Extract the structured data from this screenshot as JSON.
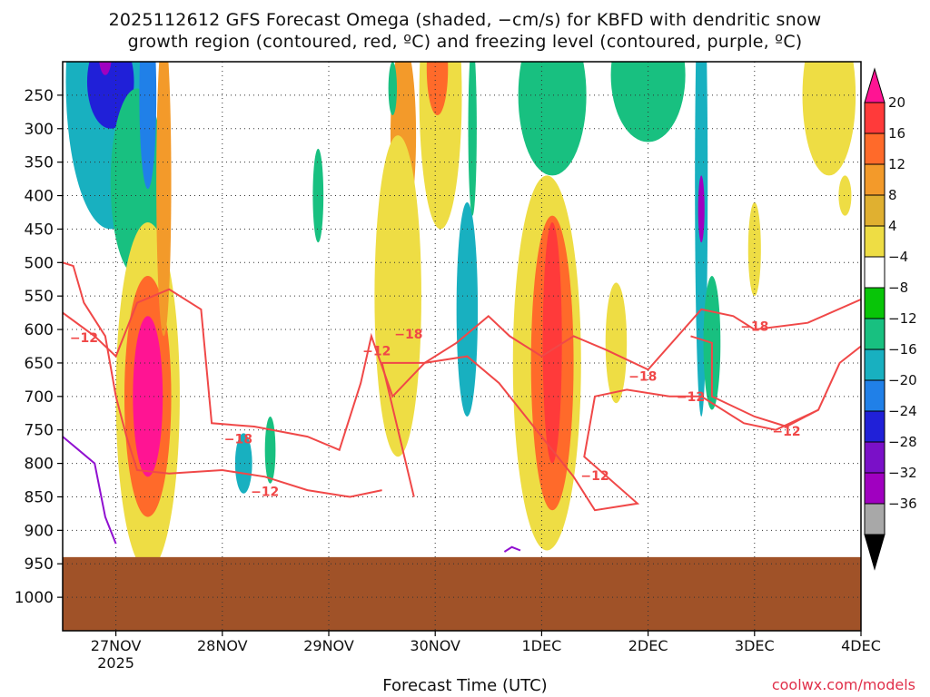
{
  "header": {
    "title_line1": "2025112612 GFS Forecast Omega (shaded, −cm/s) for KBFD with dendritic snow",
    "title_line2": "growth region (contoured, red, ºC) and freezing level (contoured, purple, ºC)"
  },
  "footer": {
    "xlabel": "Forecast Time (UTC)",
    "credit": "coolwx.com/models"
  },
  "chart_data": {
    "type": "heatmap",
    "title": "2025112612 GFS Forecast Omega (shaded, −cm/s) for KBFD with dendritic snow growth region (contoured, red, ºC) and freezing level (contoured, purple, ºC)",
    "xlabel": "Forecast Time (UTC)",
    "ylabel": "",
    "x_ticks": [
      {
        "label": "27NOV",
        "sublabel": "2025",
        "day": 1
      },
      {
        "label": "28NOV",
        "sublabel": "",
        "day": 2
      },
      {
        "label": "29NOV",
        "sublabel": "",
        "day": 3
      },
      {
        "label": "30NOV",
        "sublabel": "",
        "day": 4
      },
      {
        "label": "1DEC",
        "sublabel": "",
        "day": 5
      },
      {
        "label": "2DEC",
        "sublabel": "",
        "day": 6
      },
      {
        "label": "3DEC",
        "sublabel": "",
        "day": 7
      },
      {
        "label": "4DEC",
        "sublabel": "",
        "day": 8
      }
    ],
    "x_range_days": [
      0.5,
      8
    ],
    "y_ticks": [
      250,
      300,
      350,
      400,
      450,
      500,
      550,
      600,
      650,
      700,
      750,
      800,
      850,
      900,
      950,
      1000
    ],
    "y_range_hpa": [
      200,
      1050
    ],
    "grid": true,
    "colorbar": {
      "labels": [
        "20",
        "16",
        "12",
        "8",
        "4",
        "−4",
        "−8",
        "−12",
        "−16",
        "−20",
        "−24",
        "−28",
        "−32",
        "−36"
      ],
      "colors": [
        "#ff1493",
        "#ff3a3a",
        "#ff6a2a",
        "#f39a2a",
        "#e0b030",
        "#eedd44",
        "#ffffff",
        "#08c508",
        "#18c080",
        "#18b0c0",
        "#2080e8",
        "#2020d8",
        "#7a10c8",
        "#a000c0",
        "#a8a8a8",
        "#000000"
      ]
    },
    "ground": {
      "color": "#a05228",
      "top_hpa": 940
    },
    "omega_blobs": [
      {
        "day": 0.95,
        "hpa": 230,
        "rx_days": 0.42,
        "ry_hpa": 220,
        "value": -14
      },
      {
        "day": 0.95,
        "hpa": 230,
        "rx_days": 0.22,
        "ry_hpa": 70,
        "value": -22
      },
      {
        "day": 0.9,
        "hpa": 190,
        "rx_days": 0.06,
        "ry_hpa": 30,
        "value": -29
      },
      {
        "day": 1.2,
        "hpa": 380,
        "rx_days": 0.25,
        "ry_hpa": 140,
        "value": -10
      },
      {
        "day": 1.3,
        "hpa": 250,
        "rx_days": 0.08,
        "ry_hpa": 140,
        "value": -19
      },
      {
        "day": 1.3,
        "hpa": 700,
        "rx_days": 0.3,
        "ry_hpa": 260,
        "value": 6
      },
      {
        "day": 1.3,
        "hpa": 700,
        "rx_days": 0.22,
        "ry_hpa": 180,
        "value": 13
      },
      {
        "day": 1.3,
        "hpa": 700,
        "rx_days": 0.14,
        "ry_hpa": 120,
        "value": 21
      },
      {
        "day": 1.45,
        "hpa": 380,
        "rx_days": 0.07,
        "ry_hpa": 230,
        "value": 10
      },
      {
        "day": 2.2,
        "hpa": 800,
        "rx_days": 0.08,
        "ry_hpa": 45,
        "value": -13
      },
      {
        "day": 2.45,
        "hpa": 780,
        "rx_days": 0.05,
        "ry_hpa": 50,
        "value": -9
      },
      {
        "day": 2.9,
        "hpa": 400,
        "rx_days": 0.05,
        "ry_hpa": 70,
        "value": -9
      },
      {
        "day": 3.7,
        "hpa": 310,
        "rx_days": 0.12,
        "ry_hpa": 140,
        "value": 10
      },
      {
        "day": 3.65,
        "hpa": 550,
        "rx_days": 0.22,
        "ry_hpa": 240,
        "value": 5
      },
      {
        "day": 4.05,
        "hpa": 250,
        "rx_days": 0.2,
        "ry_hpa": 200,
        "value": 6
      },
      {
        "day": 4.02,
        "hpa": 210,
        "rx_days": 0.1,
        "ry_hpa": 70,
        "value": 14
      },
      {
        "day": 3.6,
        "hpa": 240,
        "rx_days": 0.04,
        "ry_hpa": 40,
        "value": -8
      },
      {
        "day": 4.3,
        "hpa": 570,
        "rx_days": 0.1,
        "ry_hpa": 160,
        "value": -12
      },
      {
        "day": 4.35,
        "hpa": 300,
        "rx_days": 0.04,
        "ry_hpa": 130,
        "value": -10
      },
      {
        "day": 5.05,
        "hpa": 650,
        "rx_days": 0.32,
        "ry_hpa": 280,
        "value": 6
      },
      {
        "day": 5.1,
        "hpa": 650,
        "rx_days": 0.2,
        "ry_hpa": 220,
        "value": 12
      },
      {
        "day": 5.1,
        "hpa": 620,
        "rx_days": 0.09,
        "ry_hpa": 180,
        "value": 19
      },
      {
        "day": 5.1,
        "hpa": 250,
        "rx_days": 0.32,
        "ry_hpa": 120,
        "value": -9
      },
      {
        "day": 5.7,
        "hpa": 620,
        "rx_days": 0.1,
        "ry_hpa": 90,
        "value": 5
      },
      {
        "day": 6.0,
        "hpa": 220,
        "rx_days": 0.35,
        "ry_hpa": 100,
        "value": -9
      },
      {
        "day": 6.5,
        "hpa": 380,
        "rx_days": 0.06,
        "ry_hpa": 350,
        "value": -14
      },
      {
        "day": 6.5,
        "hpa": 420,
        "rx_days": 0.03,
        "ry_hpa": 50,
        "value": -29
      },
      {
        "day": 6.6,
        "hpa": 620,
        "rx_days": 0.08,
        "ry_hpa": 100,
        "value": -9
      },
      {
        "day": 7.7,
        "hpa": 250,
        "rx_days": 0.25,
        "ry_hpa": 120,
        "value": 5
      },
      {
        "day": 7.0,
        "hpa": 480,
        "rx_days": 0.06,
        "ry_hpa": 70,
        "value": 5
      },
      {
        "day": 7.85,
        "hpa": 400,
        "rx_days": 0.06,
        "ry_hpa": 30,
        "value": 5
      }
    ],
    "dendritic_contours": [
      {
        "level": -12,
        "points": [
          [
            0.5,
            500
          ],
          [
            0.6,
            505
          ],
          [
            0.7,
            560
          ],
          [
            0.9,
            610
          ],
          [
            1.0,
            700
          ],
          [
            1.1,
            760
          ],
          [
            1.2,
            810
          ],
          [
            1.5,
            815
          ],
          [
            2.0,
            810
          ],
          [
            2.4,
            820
          ],
          [
            2.8,
            840
          ],
          [
            3.2,
            850
          ],
          [
            3.5,
            840
          ]
        ]
      },
      {
        "level": -18,
        "points": [
          [
            0.5,
            575
          ],
          [
            0.8,
            610
          ],
          [
            1.0,
            640
          ],
          [
            1.2,
            560
          ],
          [
            1.5,
            540
          ],
          [
            1.8,
            570
          ],
          [
            1.9,
            740
          ],
          [
            2.3,
            745
          ],
          [
            2.8,
            760
          ],
          [
            3.1,
            780
          ],
          [
            3.3,
            680
          ],
          [
            3.4,
            610
          ],
          [
            3.6,
            700
          ],
          [
            3.9,
            650
          ],
          [
            4.2,
            620
          ],
          [
            4.5,
            580
          ],
          [
            4.7,
            610
          ],
          [
            5.0,
            640
          ],
          [
            5.3,
            610
          ],
          [
            5.6,
            630
          ],
          [
            6.0,
            660
          ],
          [
            6.5,
            570
          ],
          [
            6.8,
            580
          ],
          [
            7.0,
            600
          ],
          [
            7.5,
            590
          ],
          [
            8.0,
            555
          ]
        ]
      },
      {
        "level": -12,
        "points": [
          [
            3.8,
            850
          ],
          [
            3.5,
            650
          ],
          [
            3.9,
            650
          ],
          [
            4.3,
            640
          ],
          [
            4.6,
            680
          ],
          [
            5.0,
            760
          ],
          [
            5.3,
            820
          ],
          [
            5.5,
            870
          ],
          [
            5.9,
            860
          ],
          [
            5.4,
            790
          ],
          [
            5.5,
            700
          ],
          [
            5.8,
            690
          ],
          [
            6.2,
            700
          ],
          [
            6.5,
            700
          ],
          [
            6.9,
            740
          ],
          [
            7.2,
            750
          ],
          [
            7.6,
            720
          ],
          [
            7.8,
            650
          ],
          [
            8.0,
            625
          ]
        ]
      },
      {
        "level": -12,
        "points": [
          [
            6.4,
            610
          ],
          [
            6.6,
            620
          ],
          [
            6.6,
            700
          ],
          [
            7.0,
            730
          ],
          [
            7.3,
            745
          ],
          [
            7.6,
            720
          ]
        ]
      }
    ],
    "dendritic_labels": [
      {
        "day": 0.7,
        "hpa": 612,
        "text": "−12"
      },
      {
        "day": 2.15,
        "hpa": 763,
        "text": "−18"
      },
      {
        "day": 2.4,
        "hpa": 842,
        "text": "−12"
      },
      {
        "day": 3.45,
        "hpa": 632,
        "text": "−12"
      },
      {
        "day": 3.75,
        "hpa": 607,
        "text": "−18"
      },
      {
        "day": 5.5,
        "hpa": 818,
        "text": "−12"
      },
      {
        "day": 5.95,
        "hpa": 670,
        "text": "−18"
      },
      {
        "day": 6.4,
        "hpa": 700,
        "text": "−12"
      },
      {
        "day": 7.0,
        "hpa": 595,
        "text": "−18"
      },
      {
        "day": 7.3,
        "hpa": 752,
        "text": "−12"
      }
    ],
    "freezing_contours": [
      {
        "level": 0,
        "points": [
          [
            0.5,
            760
          ],
          [
            0.65,
            780
          ],
          [
            0.8,
            800
          ],
          [
            0.9,
            880
          ],
          [
            1.0,
            920
          ]
        ]
      },
      {
        "level": 0,
        "points": [
          [
            4.65,
            932
          ],
          [
            4.72,
            925
          ],
          [
            4.8,
            930
          ]
        ]
      }
    ]
  }
}
